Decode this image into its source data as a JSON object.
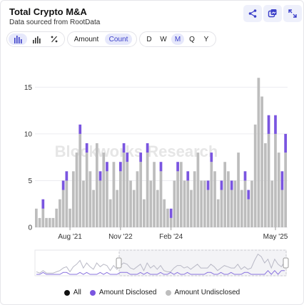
{
  "header": {
    "title": "Total Crypto M&A",
    "subtitle": "Data sourced from RootData"
  },
  "toolbar": {
    "chart_type_icons": [
      "bar-chart-icon",
      "stacked-bar-icon",
      "percent-icon"
    ],
    "metric_options": [
      "Amount",
      "Count"
    ],
    "metric_selected": "Count",
    "interval_options": [
      "D",
      "W",
      "M",
      "Q",
      "Y"
    ],
    "interval_selected": "M"
  },
  "header_icons": [
    "share-icon",
    "gallery-icon",
    "expand-icon"
  ],
  "watermark": "Blockworks Research",
  "colors": {
    "disclosed": "#7a55e0",
    "undisclosed": "#bdbdbd",
    "all": "#111111",
    "accent": "#3b3fc9"
  },
  "chart_data": {
    "type": "bar",
    "stacked": true,
    "x_tick_labels": [
      "Aug '21",
      "Nov '22",
      "Feb '24",
      "May '25"
    ],
    "y_ticks": [
      0,
      5,
      10,
      15
    ],
    "ylim": [
      0,
      18
    ],
    "grid": true,
    "legend_position": "bottom",
    "series": [
      {
        "name": "Amount Undisclosed",
        "values": [
          2,
          1,
          2,
          1,
          1,
          1,
          2,
          3,
          4,
          5,
          2,
          6,
          8,
          10,
          5,
          8,
          6,
          4,
          9,
          5,
          8,
          6,
          3,
          7,
          4,
          6,
          8,
          7,
          5,
          4,
          6,
          7,
          3,
          8,
          5,
          7,
          4,
          6,
          3,
          2,
          1,
          5,
          6,
          7,
          5,
          5,
          4,
          6,
          8,
          5,
          5,
          4,
          7,
          6,
          3,
          4,
          7,
          6,
          4,
          5,
          8,
          4,
          5,
          3,
          5,
          11,
          16,
          14,
          9,
          10,
          5,
          10,
          8,
          4,
          8
        ]
      },
      {
        "name": "Amount Disclosed",
        "values": [
          0,
          0,
          1,
          0,
          0,
          0,
          0,
          0,
          1,
          1,
          0,
          0,
          0,
          1,
          0,
          1,
          0,
          0,
          0,
          1,
          0,
          1,
          0,
          0,
          0,
          1,
          1,
          1,
          0,
          0,
          0,
          1,
          0,
          1,
          0,
          0,
          0,
          1,
          0,
          0,
          1,
          0,
          1,
          0,
          0,
          1,
          0,
          0,
          0,
          0,
          0,
          1,
          1,
          0,
          0,
          1,
          0,
          0,
          1,
          0,
          0,
          0,
          1,
          1,
          0,
          0,
          0,
          0,
          0,
          2,
          0,
          2,
          0,
          2,
          2
        ]
      }
    ]
  },
  "legend": [
    "All",
    "Amount Disclosed",
    "Amount Undisclosed"
  ]
}
